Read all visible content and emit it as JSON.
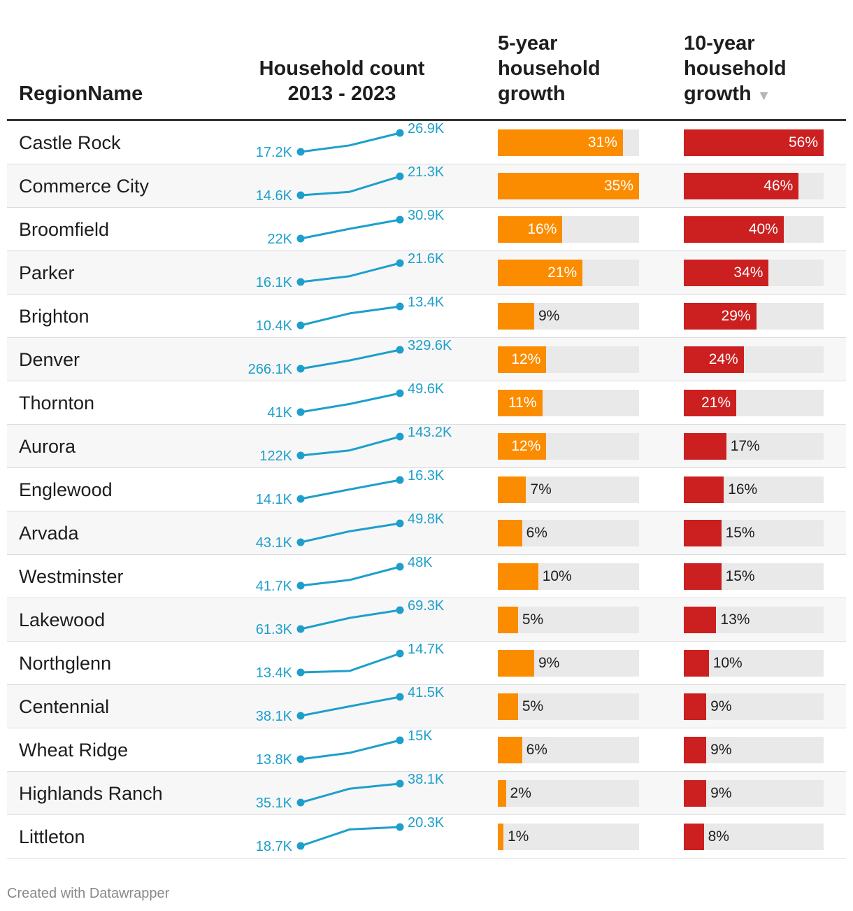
{
  "header": {
    "region": "RegionName",
    "count_line1": "Household count",
    "count_line2": "2013 - 2023",
    "five_line1": "5-year",
    "five_line2": "household",
    "five_line3": "growth",
    "ten_line1": "10-year",
    "ten_line2": "household",
    "ten_line3": "growth",
    "sort_icon": "sort-descending-icon"
  },
  "colors": {
    "spark": "#1e9fcb",
    "five_bar": "#fb8c00",
    "ten_bar": "#cc1f1f",
    "track": "#e9e9e9"
  },
  "chart_data": {
    "type": "table",
    "title": "",
    "columns": [
      "RegionName",
      "Household count 2013 - 2023",
      "5-year household growth",
      "10-year household growth"
    ],
    "sorted_by": "10-year household growth",
    "rows": [
      {
        "name": "Castle Rock",
        "start_label": "17.2K",
        "end_label": "26.9K",
        "spark": [
          17.2,
          20.5,
          26.9
        ],
        "five": 31,
        "five_label": "31%",
        "ten": 56,
        "ten_label": "56%"
      },
      {
        "name": "Commerce City",
        "start_label": "14.6K",
        "end_label": "21.3K",
        "spark": [
          14.6,
          15.8,
          21.3
        ],
        "five": 35,
        "five_label": "35%",
        "ten": 46,
        "ten_label": "46%"
      },
      {
        "name": "Broomfield",
        "start_label": "22K",
        "end_label": "30.9K",
        "spark": [
          22.0,
          26.6,
          30.9
        ],
        "five": 16,
        "five_label": "16%",
        "ten": 40,
        "ten_label": "40%"
      },
      {
        "name": "Parker",
        "start_label": "16.1K",
        "end_label": "21.6K",
        "spark": [
          16.1,
          17.8,
          21.6
        ],
        "five": 21,
        "five_label": "21%",
        "ten": 34,
        "ten_label": "34%"
      },
      {
        "name": "Brighton",
        "start_label": "10.4K",
        "end_label": "13.4K",
        "spark": [
          10.4,
          12.3,
          13.4
        ],
        "five": 9,
        "five_label": "9%",
        "ten": 29,
        "ten_label": "29%"
      },
      {
        "name": "Denver",
        "start_label": "266.1K",
        "end_label": "329.6K",
        "spark": [
          266.1,
          294.2,
          329.6
        ],
        "five": 12,
        "five_label": "12%",
        "ten": 24,
        "ten_label": "24%"
      },
      {
        "name": "Thornton",
        "start_label": "41K",
        "end_label": "49.6K",
        "spark": [
          41.0,
          44.7,
          49.6
        ],
        "five": 11,
        "five_label": "11%",
        "ten": 21,
        "ten_label": "21%"
      },
      {
        "name": "Aurora",
        "start_label": "122K",
        "end_label": "143.2K",
        "spark": [
          122.0,
          127.7,
          143.2
        ],
        "five": 12,
        "five_label": "12%",
        "ten": 17,
        "ten_label": "17%"
      },
      {
        "name": "Englewood",
        "start_label": "14.1K",
        "end_label": "16.3K",
        "spark": [
          14.1,
          15.2,
          16.3
        ],
        "five": 7,
        "five_label": "7%",
        "ten": 16,
        "ten_label": "16%"
      },
      {
        "name": "Arvada",
        "start_label": "43.1K",
        "end_label": "49.8K",
        "spark": [
          43.1,
          47.0,
          49.8
        ],
        "five": 6,
        "five_label": "6%",
        "ten": 15,
        "ten_label": "15%"
      },
      {
        "name": "Westminster",
        "start_label": "41.7K",
        "end_label": "48K",
        "spark": [
          41.7,
          43.6,
          48.0
        ],
        "five": 10,
        "five_label": "10%",
        "ten": 15,
        "ten_label": "15%"
      },
      {
        "name": "Lakewood",
        "start_label": "61.3K",
        "end_label": "69.3K",
        "spark": [
          61.3,
          66.0,
          69.3
        ],
        "five": 5,
        "five_label": "5%",
        "ten": 13,
        "ten_label": "13%"
      },
      {
        "name": "Northglenn",
        "start_label": "13.4K",
        "end_label": "14.7K",
        "spark": [
          13.4,
          13.5,
          14.7
        ],
        "five": 9,
        "five_label": "9%",
        "ten": 10,
        "ten_label": "10%"
      },
      {
        "name": "Centennial",
        "start_label": "38.1K",
        "end_label": "41.5K",
        "spark": [
          38.1,
          39.8,
          41.5
        ],
        "five": 5,
        "five_label": "5%",
        "ten": 9,
        "ten_label": "9%"
      },
      {
        "name": "Wheat Ridge",
        "start_label": "13.8K",
        "end_label": "15K",
        "spark": [
          13.8,
          14.2,
          15.0
        ],
        "five": 6,
        "five_label": "6%",
        "ten": 9,
        "ten_label": "9%"
      },
      {
        "name": "Highlands Ranch",
        "start_label": "35.1K",
        "end_label": "38.1K",
        "spark": [
          35.1,
          37.3,
          38.1
        ],
        "five": 2,
        "five_label": "2%",
        "ten": 9,
        "ten_label": "9%"
      },
      {
        "name": "Littleton",
        "start_label": "18.7K",
        "end_label": "20.3K",
        "spark": [
          18.7,
          20.1,
          20.3
        ],
        "five": 1,
        "five_label": "1%",
        "ten": 8,
        "ten_label": "8%"
      }
    ],
    "five_max": 35,
    "ten_max": 56
  },
  "footer": "Created with Datawrapper"
}
